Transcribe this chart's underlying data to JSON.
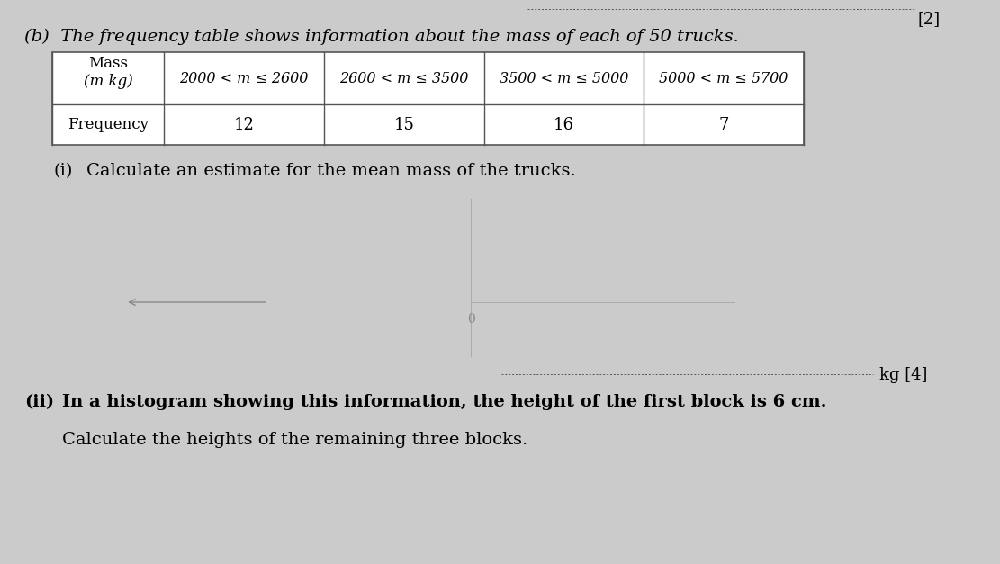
{
  "background_color": "#cbcbcb",
  "title_b": "(b)  The frequency table shows information about the mass of each of 50 trucks.",
  "marks_b": "[2]",
  "table_headers_row1": [
    "Mass",
    "2000 < m ≤ 2600",
    "2600 < m ≤ 3500",
    "3500 < m ≤ 5000",
    "5000 < m ≤ 5700"
  ],
  "table_headers_row2": [
    "(m kg)",
    "",
    "",
    "",
    ""
  ],
  "table_row_label": "Frequency",
  "table_frequencies": [
    "12",
    "15",
    "16",
    "7"
  ],
  "part_i_label": "(i)",
  "part_i_text": "Calculate an estimate for the mean mass of the trucks.",
  "answer_line_text": "kg [4]",
  "part_ii_label": "(ii)",
  "part_ii_text": "In a histogram showing this information, the height of the first block is 6 cm.",
  "part_ii_subtext": "Calculate the heights of the remaining three blocks.",
  "font_size_body": 14,
  "font_size_table_header": 12,
  "font_size_table_freq": 13
}
